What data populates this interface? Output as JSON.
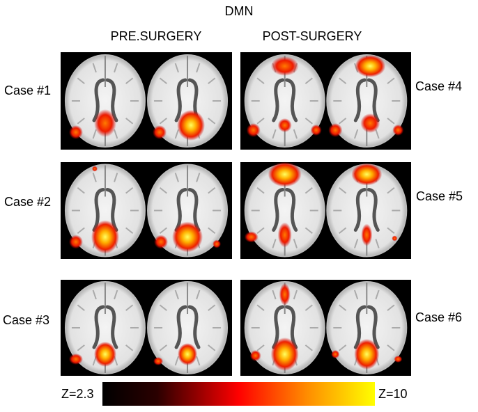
{
  "title": "DMN",
  "columns": [
    "PRE.SURGERY",
    "POST-SURGERY"
  ],
  "cases": [
    {
      "label": "Case #1"
    },
    {
      "label": "Case #2"
    },
    {
      "label": "Case #3"
    },
    {
      "label": "Case #4"
    },
    {
      "label": "Case #5"
    },
    {
      "label": "Case #6"
    }
  ],
  "colorbar": {
    "min_label": "Z=2.3",
    "max_label": "Z=10"
  }
}
